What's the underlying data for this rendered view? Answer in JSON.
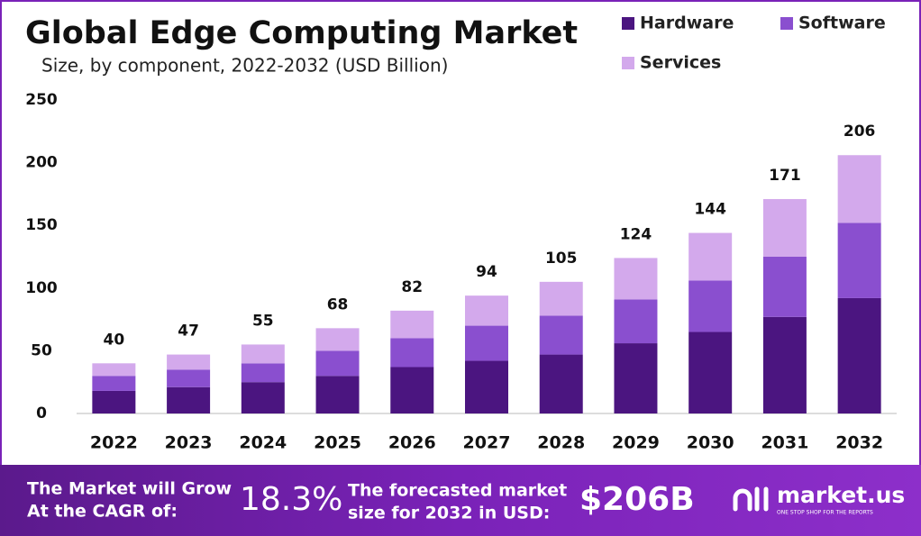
{
  "chart_data": {
    "type": "stacked_bar",
    "title": "Global Edge Computing Market",
    "subtitle": "Size, by component, 2022-2032 (USD Billion)",
    "categories": [
      "2022",
      "2023",
      "2024",
      "2025",
      "2026",
      "2027",
      "2028",
      "2029",
      "2030",
      "2031",
      "2032"
    ],
    "series": [
      {
        "name": "Hardware",
        "color": "#4b1580",
        "values": [
          18,
          21,
          25,
          30,
          37,
          42,
          47,
          56,
          65,
          77,
          92
        ]
      },
      {
        "name": "Software",
        "color": "#8a4fcf",
        "values": [
          12,
          14,
          15,
          20,
          23,
          28,
          31,
          35,
          41,
          48,
          60
        ]
      },
      {
        "name": "Services",
        "color": "#d3a9ec",
        "values": [
          10,
          12,
          15,
          18,
          22,
          24,
          27,
          33,
          38,
          46,
          54
        ]
      }
    ],
    "totals": [
      40,
      47,
      55,
      68,
      82,
      94,
      105,
      124,
      144,
      171,
      206
    ],
    "ylim": [
      0,
      250
    ],
    "yticks": [
      0,
      50,
      100,
      150,
      200,
      250
    ],
    "grid": false,
    "legend": "top-right",
    "footer": {
      "cagr_text": [
        "The Market will Grow",
        "At the CAGR of:"
      ],
      "cagr": "18.3%",
      "forecast_text": [
        "The forecasted market",
        "size for 2032 in USD:"
      ],
      "forecast": "$206B",
      "brand": "market.us",
      "tagline": "ONE STOP SHOP FOR THE REPORTS"
    }
  }
}
